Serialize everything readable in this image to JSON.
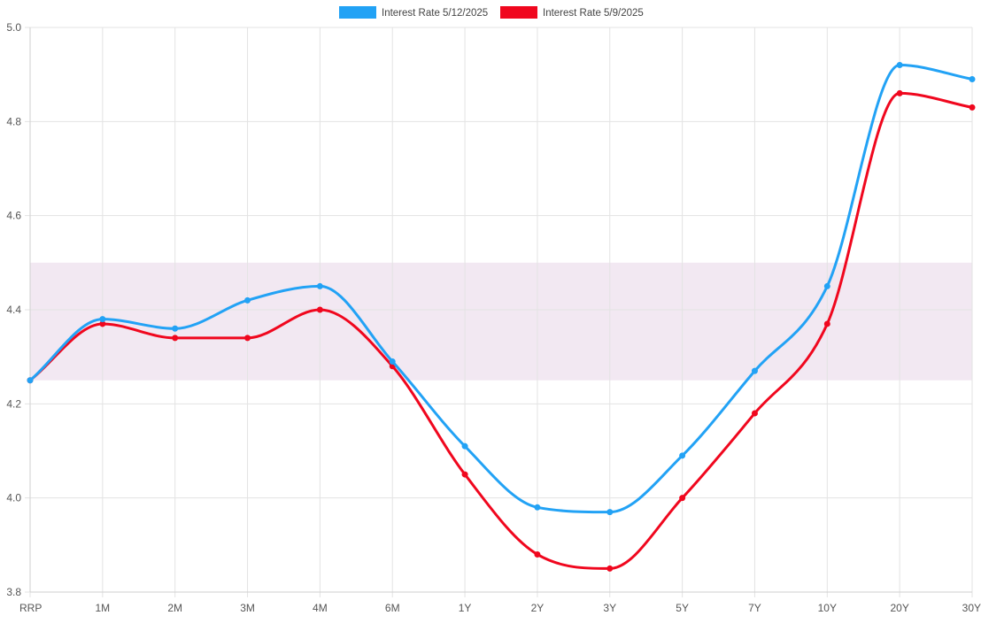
{
  "chart_data": {
    "type": "line",
    "title": "",
    "xlabel": "",
    "ylabel": "",
    "categories": [
      "RRP",
      "1M",
      "2M",
      "3M",
      "4M",
      "6M",
      "1Y",
      "2Y",
      "3Y",
      "5Y",
      "7Y",
      "10Y",
      "20Y",
      "30Y"
    ],
    "ylim": [
      3.8,
      5.0
    ],
    "yticks": [
      3.8,
      4.0,
      4.2,
      4.4,
      4.6,
      4.8,
      5.0
    ],
    "grid": true,
    "legend_position": "top-center",
    "band": {
      "from": 4.25,
      "to": 4.5,
      "color": "#f2e8f2"
    },
    "series": [
      {
        "name": "Interest Rate 5/12/2025",
        "color": "#22a2f5",
        "values": [
          4.25,
          4.38,
          4.36,
          4.42,
          4.45,
          4.29,
          4.11,
          3.98,
          3.97,
          4.09,
          4.27,
          4.45,
          4.92,
          4.89
        ]
      },
      {
        "name": "Interest Rate 5/9/2025",
        "color": "#f0071e",
        "values": [
          4.25,
          4.37,
          4.34,
          4.34,
          4.4,
          4.28,
          4.05,
          3.88,
          3.85,
          4.0,
          4.18,
          4.37,
          4.86,
          4.83
        ]
      }
    ]
  }
}
